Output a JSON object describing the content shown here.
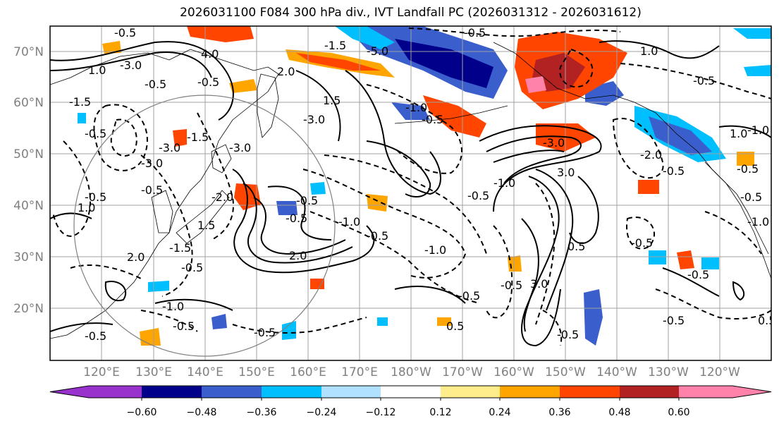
{
  "title": "2026031100 F084 300 hPa div., IVT Landfall PC (2026031312 - 2026031612)",
  "lat_labels": [
    "70°N",
    "60°N",
    "50°N",
    "40°N",
    "30°N",
    "20°N"
  ],
  "lon_labels": [
    "120°E",
    "130°E",
    "140°E",
    "150°E",
    "160°E",
    "170°E",
    "180°W",
    "170°W",
    "160°W",
    "150°W",
    "140°W",
    "130°W",
    "120°W"
  ],
  "colorbar": {
    "colors": [
      "#9932cc",
      "#00008b",
      "#3a5fcd",
      "#00bfff",
      "#b0e2ff",
      "#ffffff",
      "#ffec8b",
      "#ffa500",
      "#ff4500",
      "#b22222",
      "#ff82ab"
    ],
    "tick_labels": [
      "−0.60",
      "−0.48",
      "−0.36",
      "−0.24",
      "−0.12",
      "0.12",
      "0.24",
      "0.36",
      "0.48",
      "0.60"
    ]
  },
  "contour_labels": [
    "-0.5",
    "-3.0",
    "-5.0",
    "-1.5",
    "-0.5",
    "1.0",
    "4.0",
    "-0.5",
    "2.0",
    "-0.5",
    "-1.5",
    "-3.0",
    "-1.5",
    "-3.0",
    "-0.5",
    "-3.0",
    "-0.5",
    "-1.0",
    "1.5",
    "1.0",
    "-0.5",
    "-2.0",
    "-0.5",
    "-0.5",
    "-1.0",
    "-0.5",
    "-0.5",
    "-3.0",
    "-1.0",
    "-0.5",
    "-1.0",
    "2.0",
    "3.0",
    "-0.5",
    "-1.0",
    "-0.5",
    "-0.5",
    "-0.5",
    "-0.5",
    "1.5",
    "-1.5",
    "-2.0",
    "-0.5",
    "3.0",
    "0.5",
    "-0.5",
    "-0.5",
    "-1.0",
    "-0.5",
    "0.5",
    "-0.5",
    "-0.5",
    "-0.5",
    "0.5",
    "2.0",
    "-3.0",
    "1.0",
    "1.0",
    "-0.5",
    "-0.5",
    "-1.0"
  ]
}
